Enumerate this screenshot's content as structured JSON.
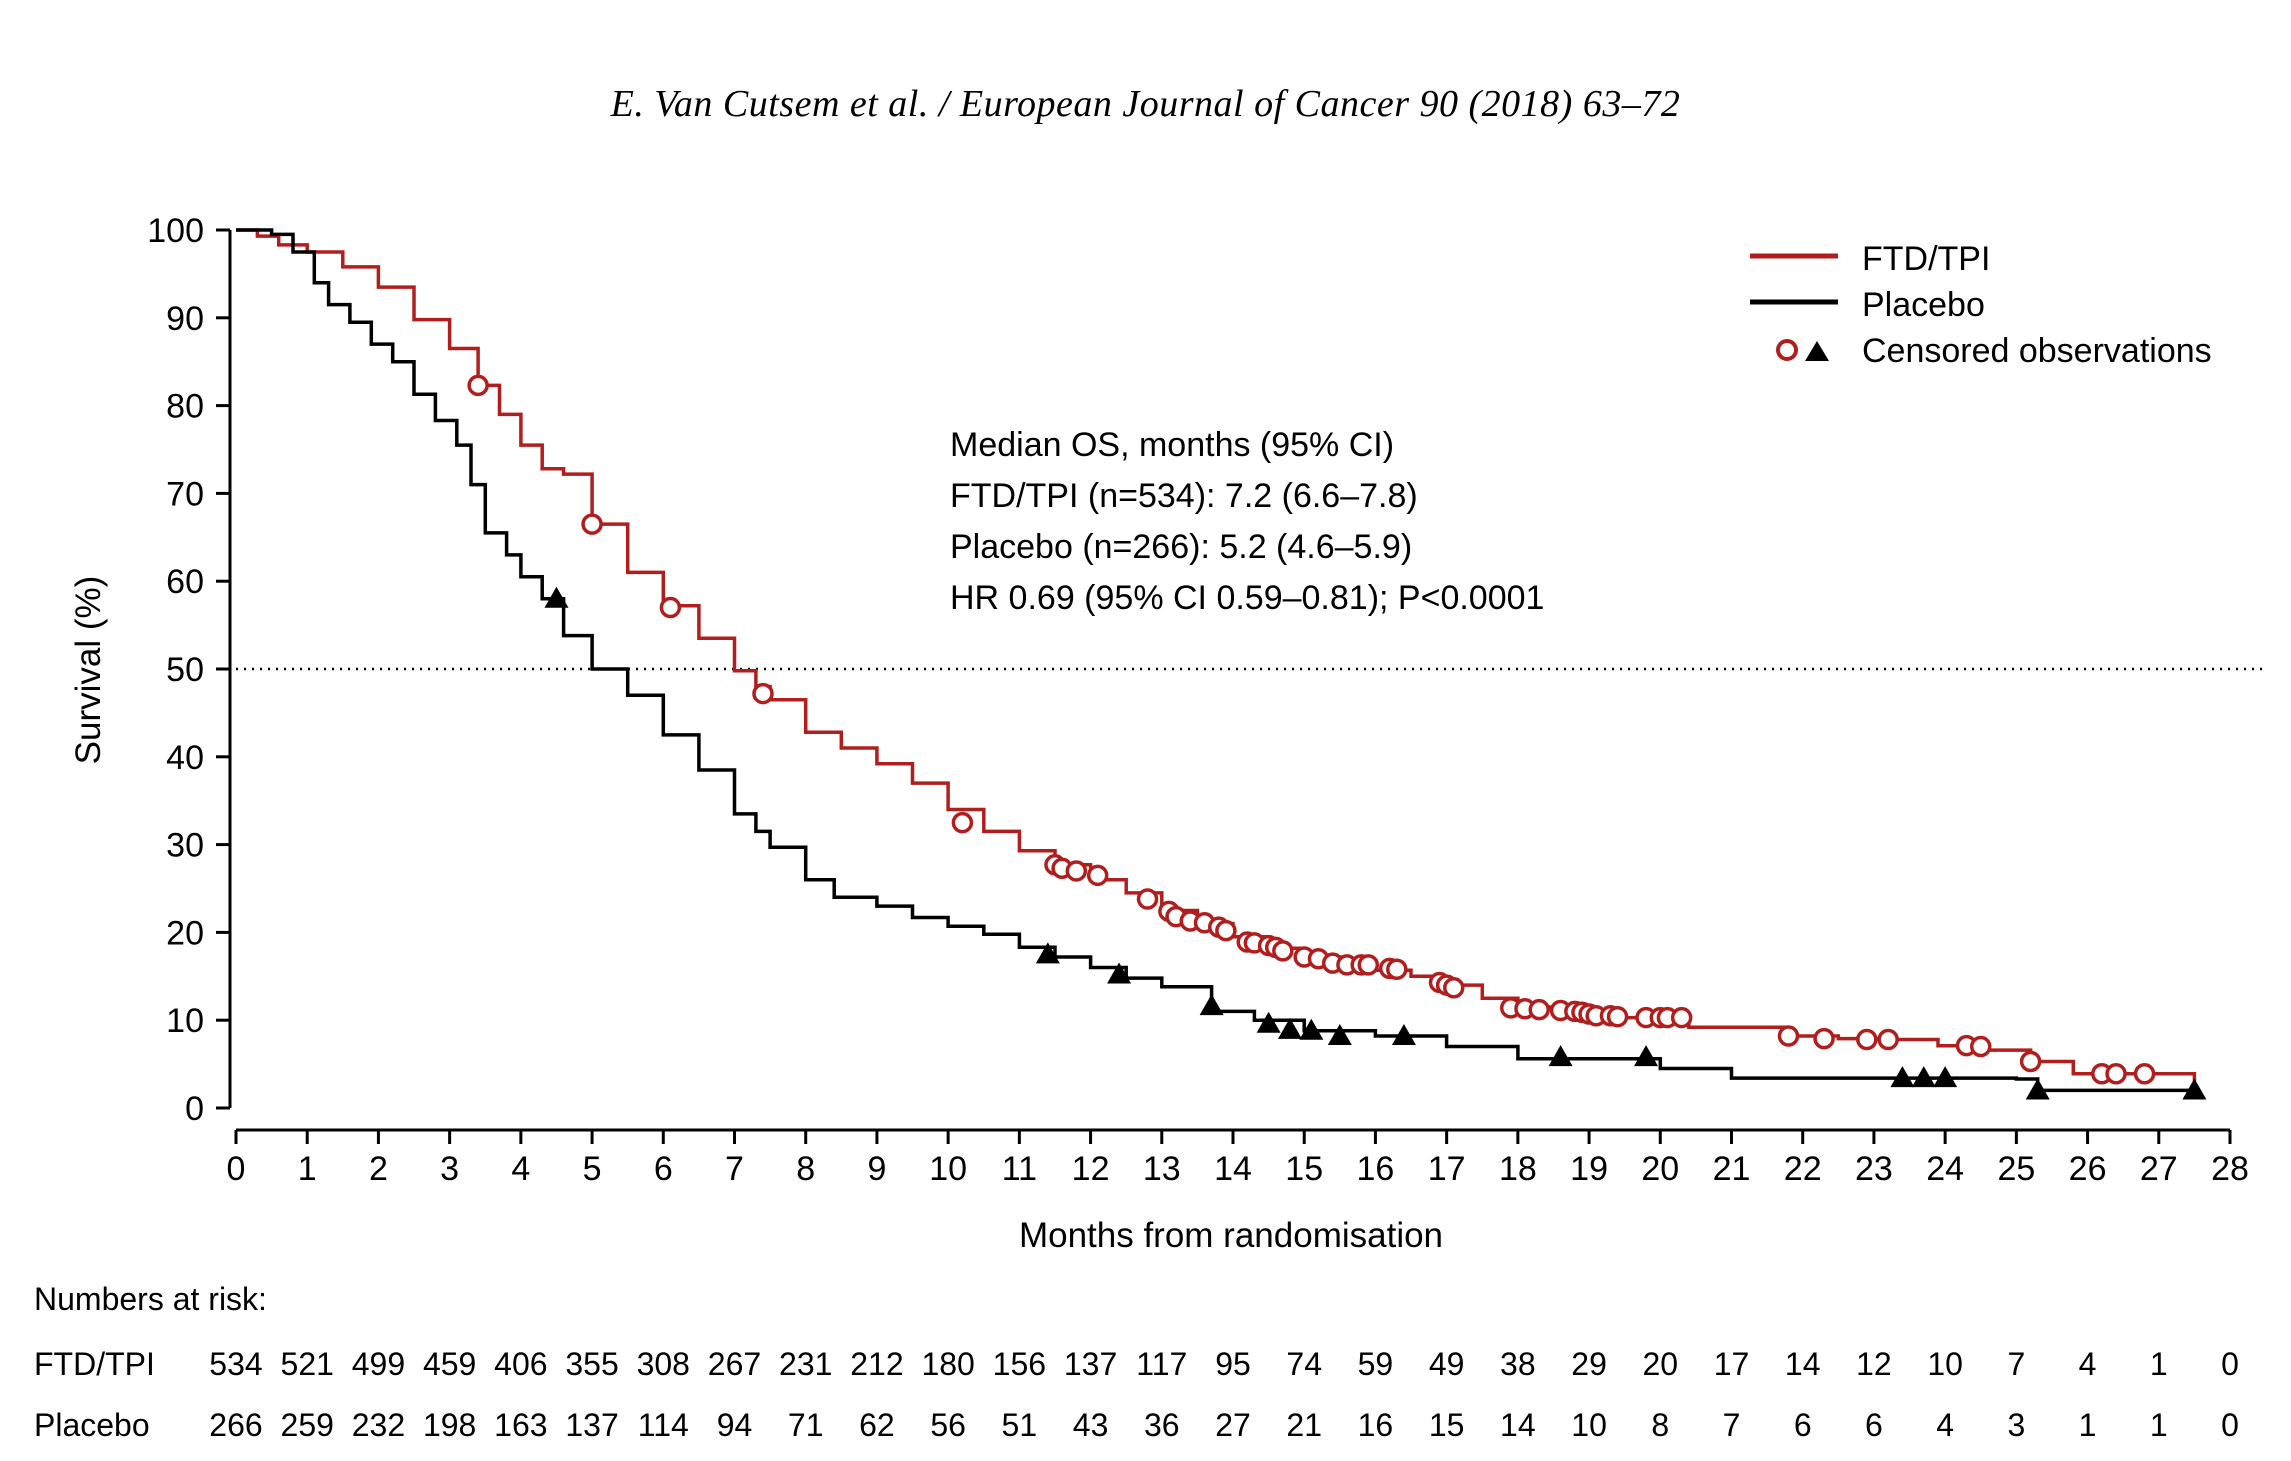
{
  "header": {
    "running_title": "E. Van Cutsem et al. / European Journal of Cancer  90 (2018) 63–72"
  },
  "colors": {
    "ftd_tpi": "#b01e1e",
    "placebo": "#000000",
    "reference_line": "#000000"
  },
  "chart_data": {
    "type": "line",
    "title": "",
    "xlabel": "Months from randomisation",
    "ylabel": "Survival (%)",
    "xlim": [
      0,
      28
    ],
    "ylim": [
      0,
      100
    ],
    "x_ticks": [
      0,
      1,
      2,
      3,
      4,
      5,
      6,
      7,
      8,
      9,
      10,
      11,
      12,
      13,
      14,
      15,
      16,
      17,
      18,
      19,
      20,
      21,
      22,
      23,
      24,
      25,
      26,
      27,
      28
    ],
    "y_ticks": [
      0,
      10,
      20,
      30,
      40,
      50,
      60,
      70,
      80,
      90,
      100
    ],
    "reference_line": {
      "y": 50,
      "style": "dotted"
    },
    "legend": {
      "placement": "top-right",
      "entries": [
        "FTD/TPI",
        "Placebo",
        "Censored observations"
      ]
    },
    "annotation": [
      "Median OS, months (95% CI)",
      "FTD/TPI (n=534): 7.2 (6.6–7.8)",
      "Placebo (n=266): 5.2 (4.6–5.9)",
      "HR 0.69 (95% CI 0.59–0.81); P<0.0001"
    ],
    "series": [
      {
        "name": "FTD/TPI",
        "color": "#b01e1e",
        "points": [
          [
            0,
            100
          ],
          [
            0.3,
            99.3
          ],
          [
            0.6,
            98.3
          ],
          [
            1,
            97.5
          ],
          [
            1.5,
            95.8
          ],
          [
            2,
            93.5
          ],
          [
            2.5,
            89.8
          ],
          [
            3,
            86.5
          ],
          [
            3.4,
            82.3
          ],
          [
            3.7,
            79
          ],
          [
            4,
            75.5
          ],
          [
            4.3,
            72.8
          ],
          [
            4.6,
            72.2
          ],
          [
            5,
            66.5
          ],
          [
            5.5,
            61
          ],
          [
            6,
            57.2
          ],
          [
            6.5,
            53.5
          ],
          [
            7,
            49.8
          ],
          [
            7.3,
            48
          ],
          [
            7.5,
            46.5
          ],
          [
            8,
            42.8
          ],
          [
            8.5,
            41
          ],
          [
            9,
            39.2
          ],
          [
            9.5,
            37
          ],
          [
            10,
            34
          ],
          [
            10.5,
            31.5
          ],
          [
            11,
            29.3
          ],
          [
            11.5,
            27.7
          ],
          [
            12,
            26
          ],
          [
            12.5,
            24.5
          ],
          [
            13,
            22.5
          ],
          [
            13.5,
            21
          ],
          [
            14,
            19.5
          ],
          [
            14.5,
            18.2
          ],
          [
            15,
            17.2
          ],
          [
            15.5,
            16.3
          ],
          [
            16,
            15.7
          ],
          [
            16.5,
            15
          ],
          [
            17,
            14
          ],
          [
            17.5,
            12.5
          ],
          [
            18,
            11.5
          ],
          [
            18.5,
            11
          ],
          [
            19,
            10.7
          ],
          [
            19.5,
            10.3
          ],
          [
            20,
            10.1
          ],
          [
            20.4,
            9.2
          ],
          [
            21,
            9.2
          ],
          [
            21.8,
            8.2
          ],
          [
            22.5,
            7.9
          ],
          [
            23.3,
            7.8
          ],
          [
            23.9,
            7.1
          ],
          [
            24.6,
            6.6
          ],
          [
            25.2,
            5.3
          ],
          [
            25.8,
            3.9
          ],
          [
            26.5,
            3.9
          ],
          [
            27,
            3.9
          ],
          [
            27.5,
            1.9
          ]
        ]
      },
      {
        "name": "Placebo",
        "color": "#000000",
        "points": [
          [
            0,
            100
          ],
          [
            0.5,
            99.5
          ],
          [
            0.8,
            97.5
          ],
          [
            1.1,
            94
          ],
          [
            1.3,
            91.5
          ],
          [
            1.6,
            89.5
          ],
          [
            1.9,
            87
          ],
          [
            2.2,
            85
          ],
          [
            2.5,
            81.3
          ],
          [
            2.8,
            78.3
          ],
          [
            3.1,
            75.5
          ],
          [
            3.3,
            71
          ],
          [
            3.5,
            65.5
          ],
          [
            3.8,
            63
          ],
          [
            4,
            60.5
          ],
          [
            4.3,
            58
          ],
          [
            4.6,
            53.8
          ],
          [
            5,
            50
          ],
          [
            5.5,
            47
          ],
          [
            6,
            42.5
          ],
          [
            6.5,
            38.5
          ],
          [
            7,
            33.5
          ],
          [
            7.3,
            31.5
          ],
          [
            7.5,
            29.7
          ],
          [
            8,
            26
          ],
          [
            8.4,
            24
          ],
          [
            9,
            23
          ],
          [
            9.5,
            21.7
          ],
          [
            10,
            20.7
          ],
          [
            10.5,
            19.8
          ],
          [
            11,
            18.3
          ],
          [
            11.5,
            17.2
          ],
          [
            12,
            16
          ],
          [
            12.5,
            14.8
          ],
          [
            13,
            13.8
          ],
          [
            13.7,
            11
          ],
          [
            14.3,
            10
          ],
          [
            15,
            8.8
          ],
          [
            16,
            8.2
          ],
          [
            17,
            7
          ],
          [
            18,
            5.6
          ],
          [
            19,
            5.6
          ],
          [
            20,
            4.5
          ],
          [
            21,
            3.4
          ],
          [
            22,
            3.4
          ],
          [
            23,
            3.4
          ],
          [
            24,
            3.4
          ],
          [
            25,
            3.3
          ],
          [
            25.3,
            2
          ],
          [
            26,
            2
          ],
          [
            27.5,
            2
          ]
        ]
      }
    ],
    "censored": [
      {
        "series": "FTD/TPI",
        "marker": "circle",
        "points": [
          [
            3.4,
            82.3
          ],
          [
            5,
            66.5
          ],
          [
            6.1,
            57
          ],
          [
            7.4,
            47.2
          ],
          [
            10.2,
            32.5
          ],
          [
            11.5,
            27.7
          ],
          [
            11.6,
            27.3
          ],
          [
            11.8,
            27
          ],
          [
            12.1,
            26.5
          ],
          [
            12.8,
            23.8
          ],
          [
            13.1,
            22.4
          ],
          [
            13.2,
            21.8
          ],
          [
            13.4,
            21.3
          ],
          [
            13.6,
            21.1
          ],
          [
            13.8,
            20.6
          ],
          [
            13.9,
            20.2
          ],
          [
            14.2,
            18.9
          ],
          [
            14.3,
            18.8
          ],
          [
            14.5,
            18.5
          ],
          [
            14.6,
            18.3
          ],
          [
            14.7,
            17.9
          ],
          [
            15,
            17.2
          ],
          [
            15.2,
            17
          ],
          [
            15.4,
            16.5
          ],
          [
            15.6,
            16.3
          ],
          [
            15.8,
            16.3
          ],
          [
            15.9,
            16.3
          ],
          [
            16.2,
            15.9
          ],
          [
            16.3,
            15.8
          ],
          [
            16.9,
            14.3
          ],
          [
            17,
            14
          ],
          [
            17.1,
            13.7
          ],
          [
            17.9,
            11.4
          ],
          [
            18.1,
            11.3
          ],
          [
            18.3,
            11.2
          ],
          [
            18.6,
            11.1
          ],
          [
            18.8,
            11
          ],
          [
            18.9,
            10.9
          ],
          [
            19,
            10.7
          ],
          [
            19.1,
            10.5
          ],
          [
            19.3,
            10.5
          ],
          [
            19.4,
            10.4
          ],
          [
            19.8,
            10.3
          ],
          [
            20,
            10.3
          ],
          [
            20.1,
            10.3
          ],
          [
            20.3,
            10.3
          ],
          [
            21.8,
            8.2
          ],
          [
            22.3,
            7.9
          ],
          [
            22.9,
            7.8
          ],
          [
            23.2,
            7.8
          ],
          [
            24.3,
            7.1
          ],
          [
            24.5,
            7
          ],
          [
            25.2,
            5.3
          ],
          [
            26.2,
            3.9
          ],
          [
            26.4,
            3.9
          ],
          [
            26.8,
            3.9
          ]
        ]
      },
      {
        "series": "Placebo",
        "marker": "triangle",
        "points": [
          [
            4.5,
            58
          ],
          [
            11.4,
            17.5
          ],
          [
            12.4,
            15.2
          ],
          [
            13.7,
            11.6
          ],
          [
            14.5,
            9.6
          ],
          [
            14.8,
            8.9
          ],
          [
            15.1,
            8.8
          ],
          [
            15.5,
            8.2
          ],
          [
            16.4,
            8.2
          ],
          [
            18.6,
            5.8
          ],
          [
            19.8,
            5.8
          ],
          [
            23.4,
            3.4
          ],
          [
            23.7,
            3.4
          ],
          [
            24,
            3.4
          ],
          [
            25.3,
            2
          ],
          [
            27.5,
            2
          ]
        ]
      }
    ],
    "risk_table": {
      "title": "Numbers at risk:",
      "rows": [
        {
          "label": "FTD/TPI",
          "values": [
            534,
            521,
            499,
            459,
            406,
            355,
            308,
            267,
            231,
            212,
            180,
            156,
            137,
            117,
            95,
            74,
            59,
            49,
            38,
            29,
            20,
            17,
            14,
            12,
            10,
            7,
            4,
            1,
            0
          ]
        },
        {
          "label": "Placebo",
          "values": [
            266,
            259,
            232,
            198,
            163,
            137,
            114,
            94,
            71,
            62,
            56,
            51,
            43,
            36,
            27,
            21,
            16,
            15,
            14,
            10,
            8,
            7,
            6,
            6,
            4,
            3,
            1,
            1,
            0
          ]
        }
      ]
    }
  }
}
